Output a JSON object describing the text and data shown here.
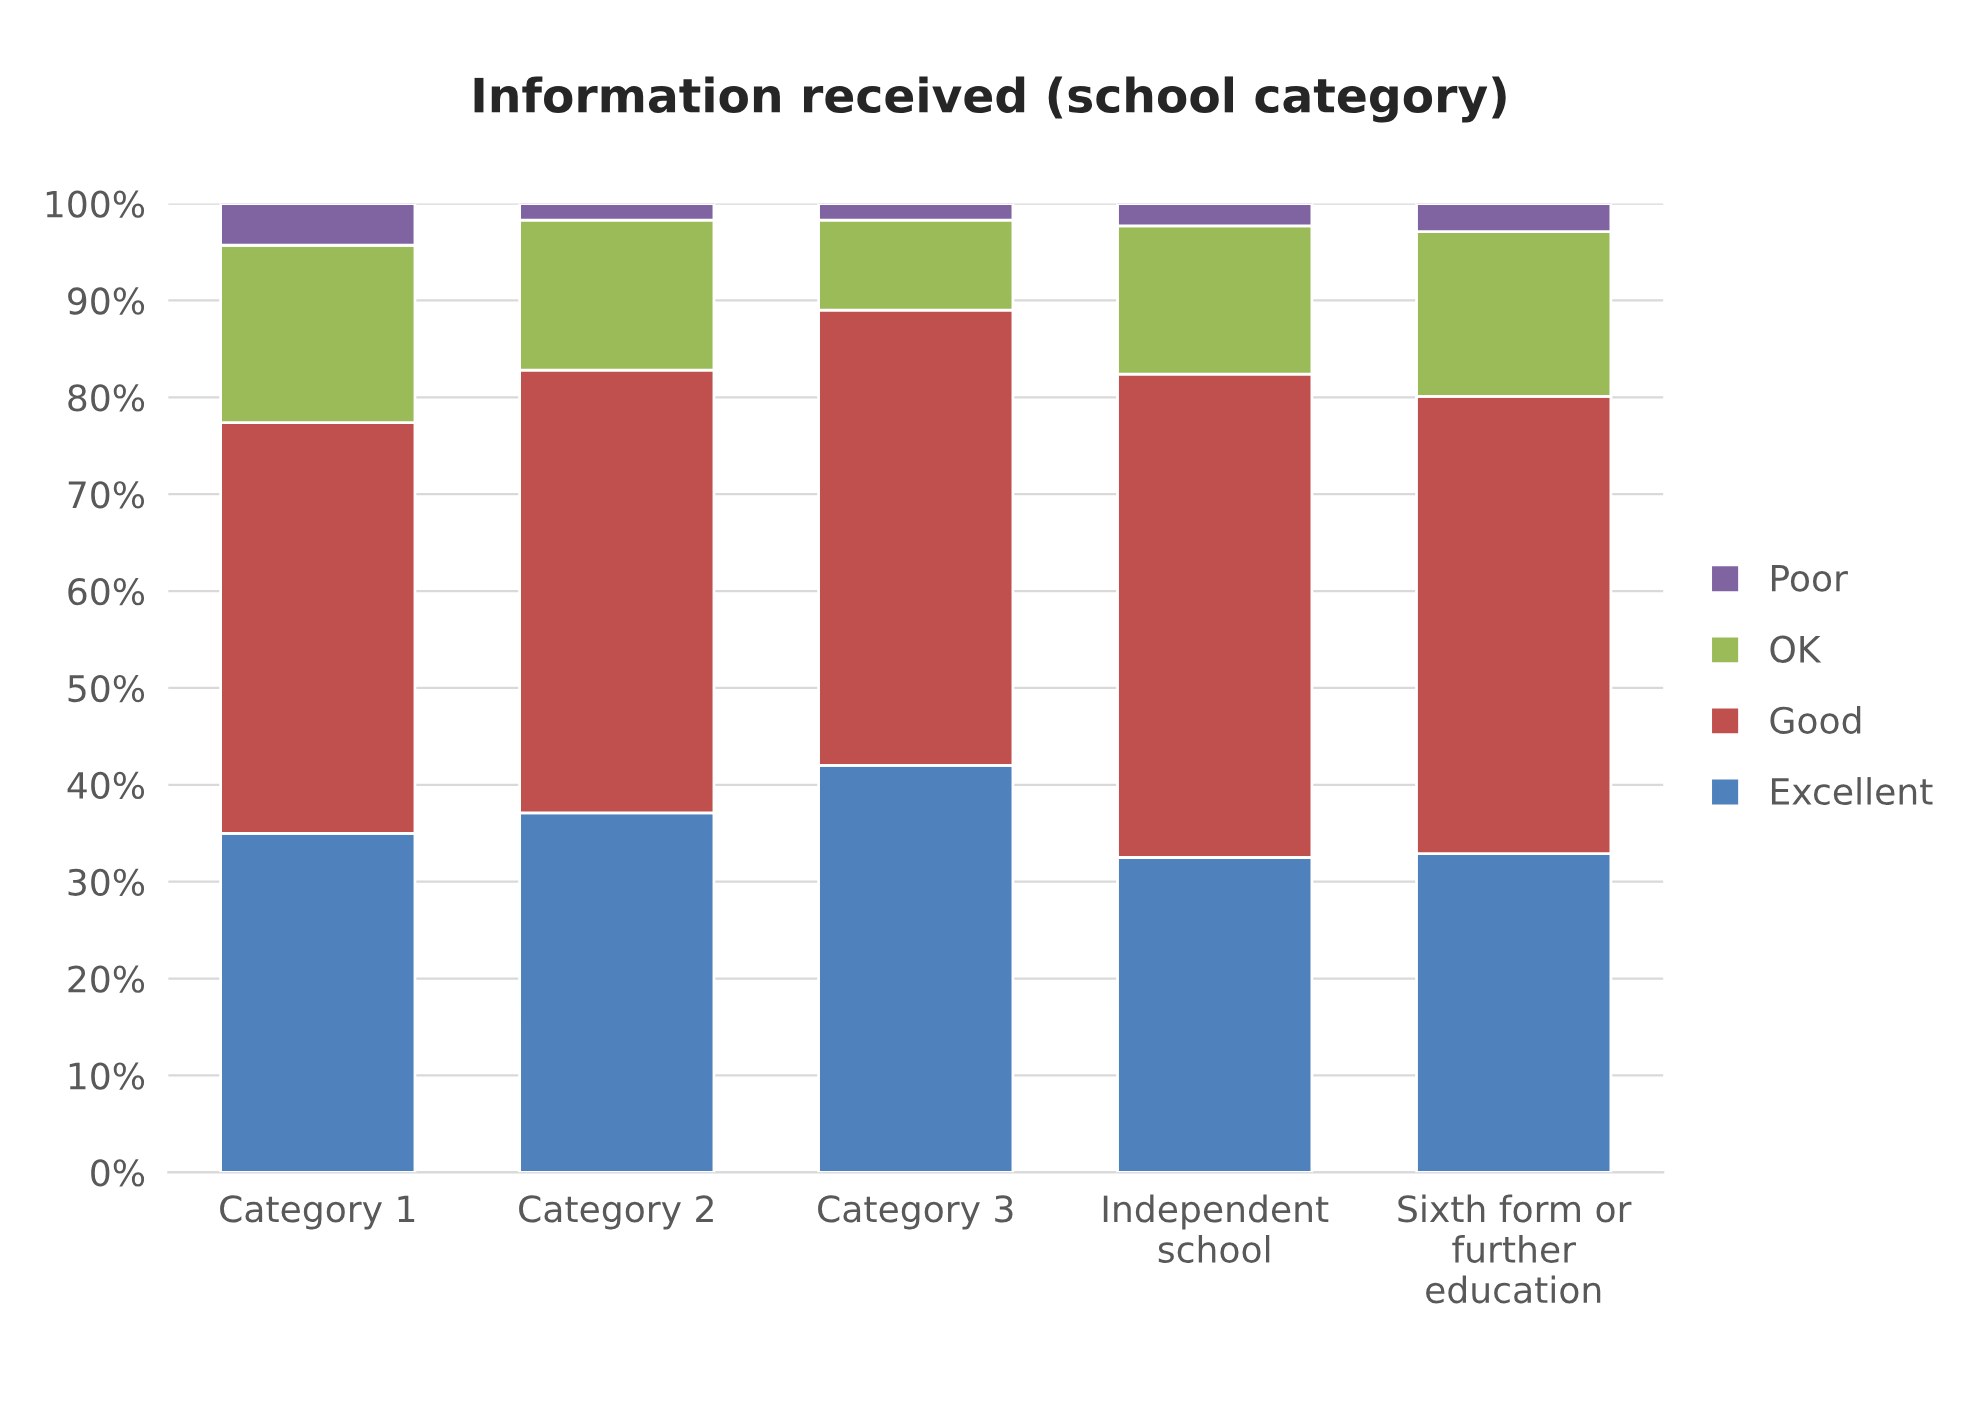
{
  "chart_data": {
    "type": "bar",
    "title": "Information received (school category)",
    "categories": [
      "Category 1",
      "Category 2",
      "Category 3",
      "Independent school",
      "Sixth form or further education"
    ],
    "stacked": true,
    "series": [
      {
        "name": "Excellent",
        "color": "#4f81bd",
        "values": [
          35.0,
          37.1,
          42.0,
          32.5,
          32.9
        ]
      },
      {
        "name": "Good",
        "color": "#c0504d",
        "values": [
          42.4,
          45.7,
          47.0,
          49.9,
          47.2
        ]
      },
      {
        "name": "OK",
        "color": "#9bbb59",
        "values": [
          18.3,
          15.5,
          9.3,
          15.3,
          17.0
        ]
      },
      {
        "name": "Poor",
        "color": "#8064a2",
        "values": [
          4.3,
          1.7,
          1.7,
          2.3,
          2.9
        ]
      }
    ],
    "ylim": [
      0,
      100
    ],
    "yticks": [
      {
        "value": 0,
        "label": "0%"
      },
      {
        "value": 10,
        "label": "10%"
      },
      {
        "value": 20,
        "label": "20%"
      },
      {
        "value": 30,
        "label": "30%"
      },
      {
        "value": 40,
        "label": "40%"
      },
      {
        "value": 50,
        "label": "50%"
      },
      {
        "value": 60,
        "label": "60%"
      },
      {
        "value": 70,
        "label": "70%"
      },
      {
        "value": 80,
        "label": "80%"
      },
      {
        "value": 90,
        "label": "90%"
      },
      {
        "value": 100,
        "label": "100%"
      }
    ],
    "grid": "y",
    "legend": "right"
  }
}
